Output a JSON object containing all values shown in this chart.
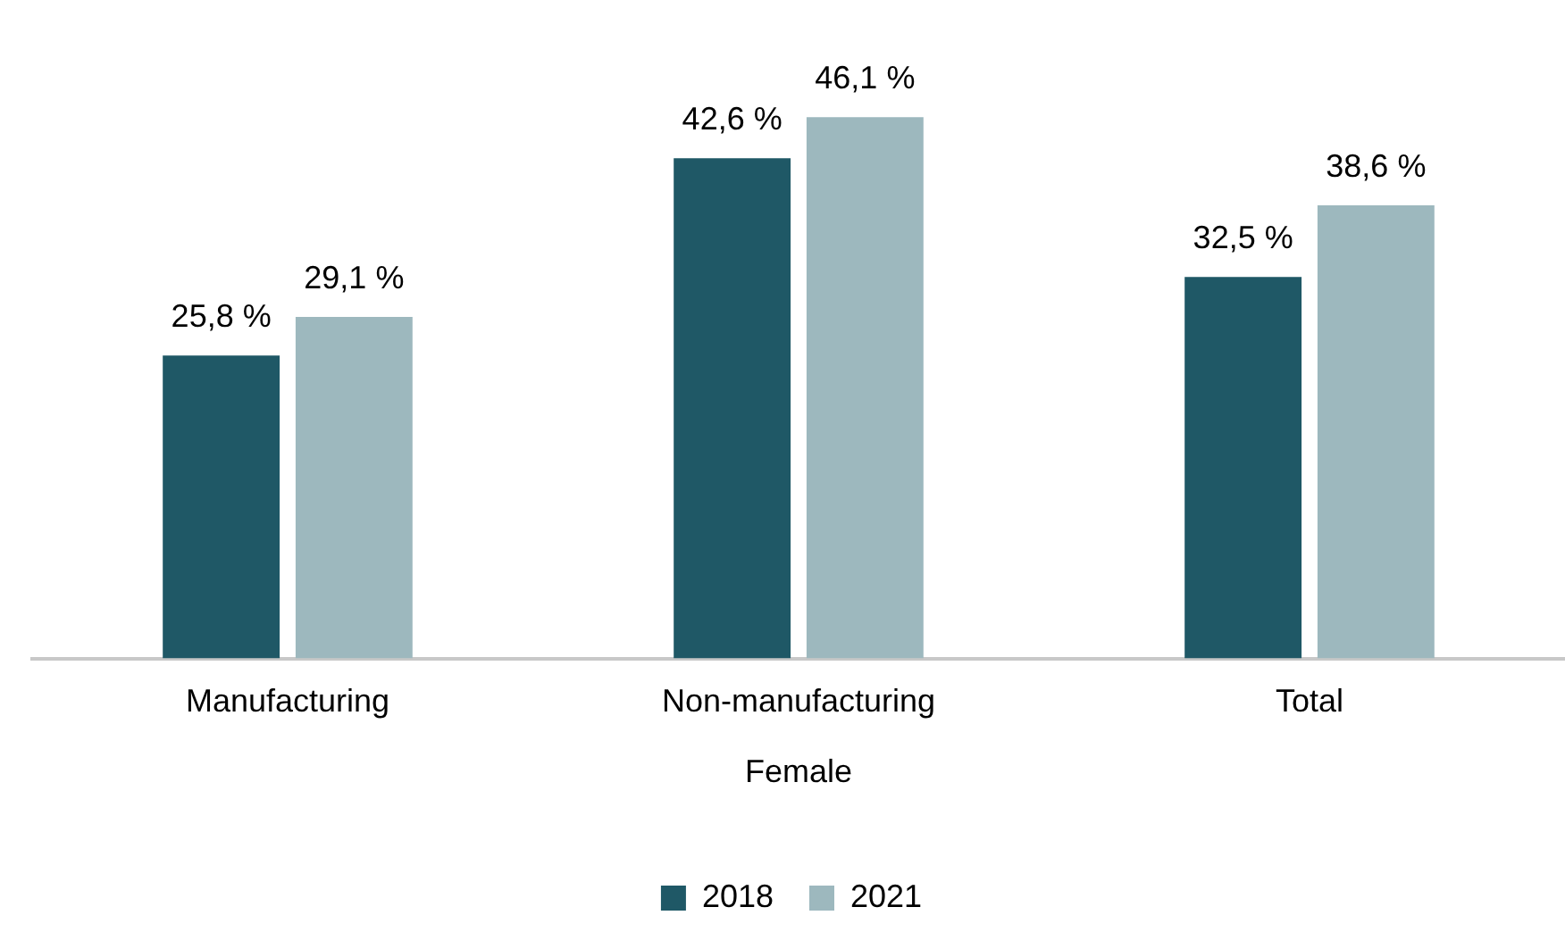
{
  "chart_data": {
    "type": "bar",
    "xlabel": "Female",
    "categories": [
      "Manufacturing",
      "Non-manufacturing",
      "Total"
    ],
    "series": [
      {
        "name": "2018",
        "color": "#1f5866",
        "values": [
          25.8,
          42.6,
          32.5
        ],
        "value_labels": [
          "25,8 %",
          "42,6 %",
          "32,5 %"
        ]
      },
      {
        "name": "2021",
        "color": "#9db8be",
        "values": [
          29.1,
          46.1,
          38.6
        ],
        "value_labels": [
          "29,1 %",
          "46,1 %",
          "38,6 %"
        ]
      }
    ],
    "grid": false,
    "legend": "bottom"
  }
}
